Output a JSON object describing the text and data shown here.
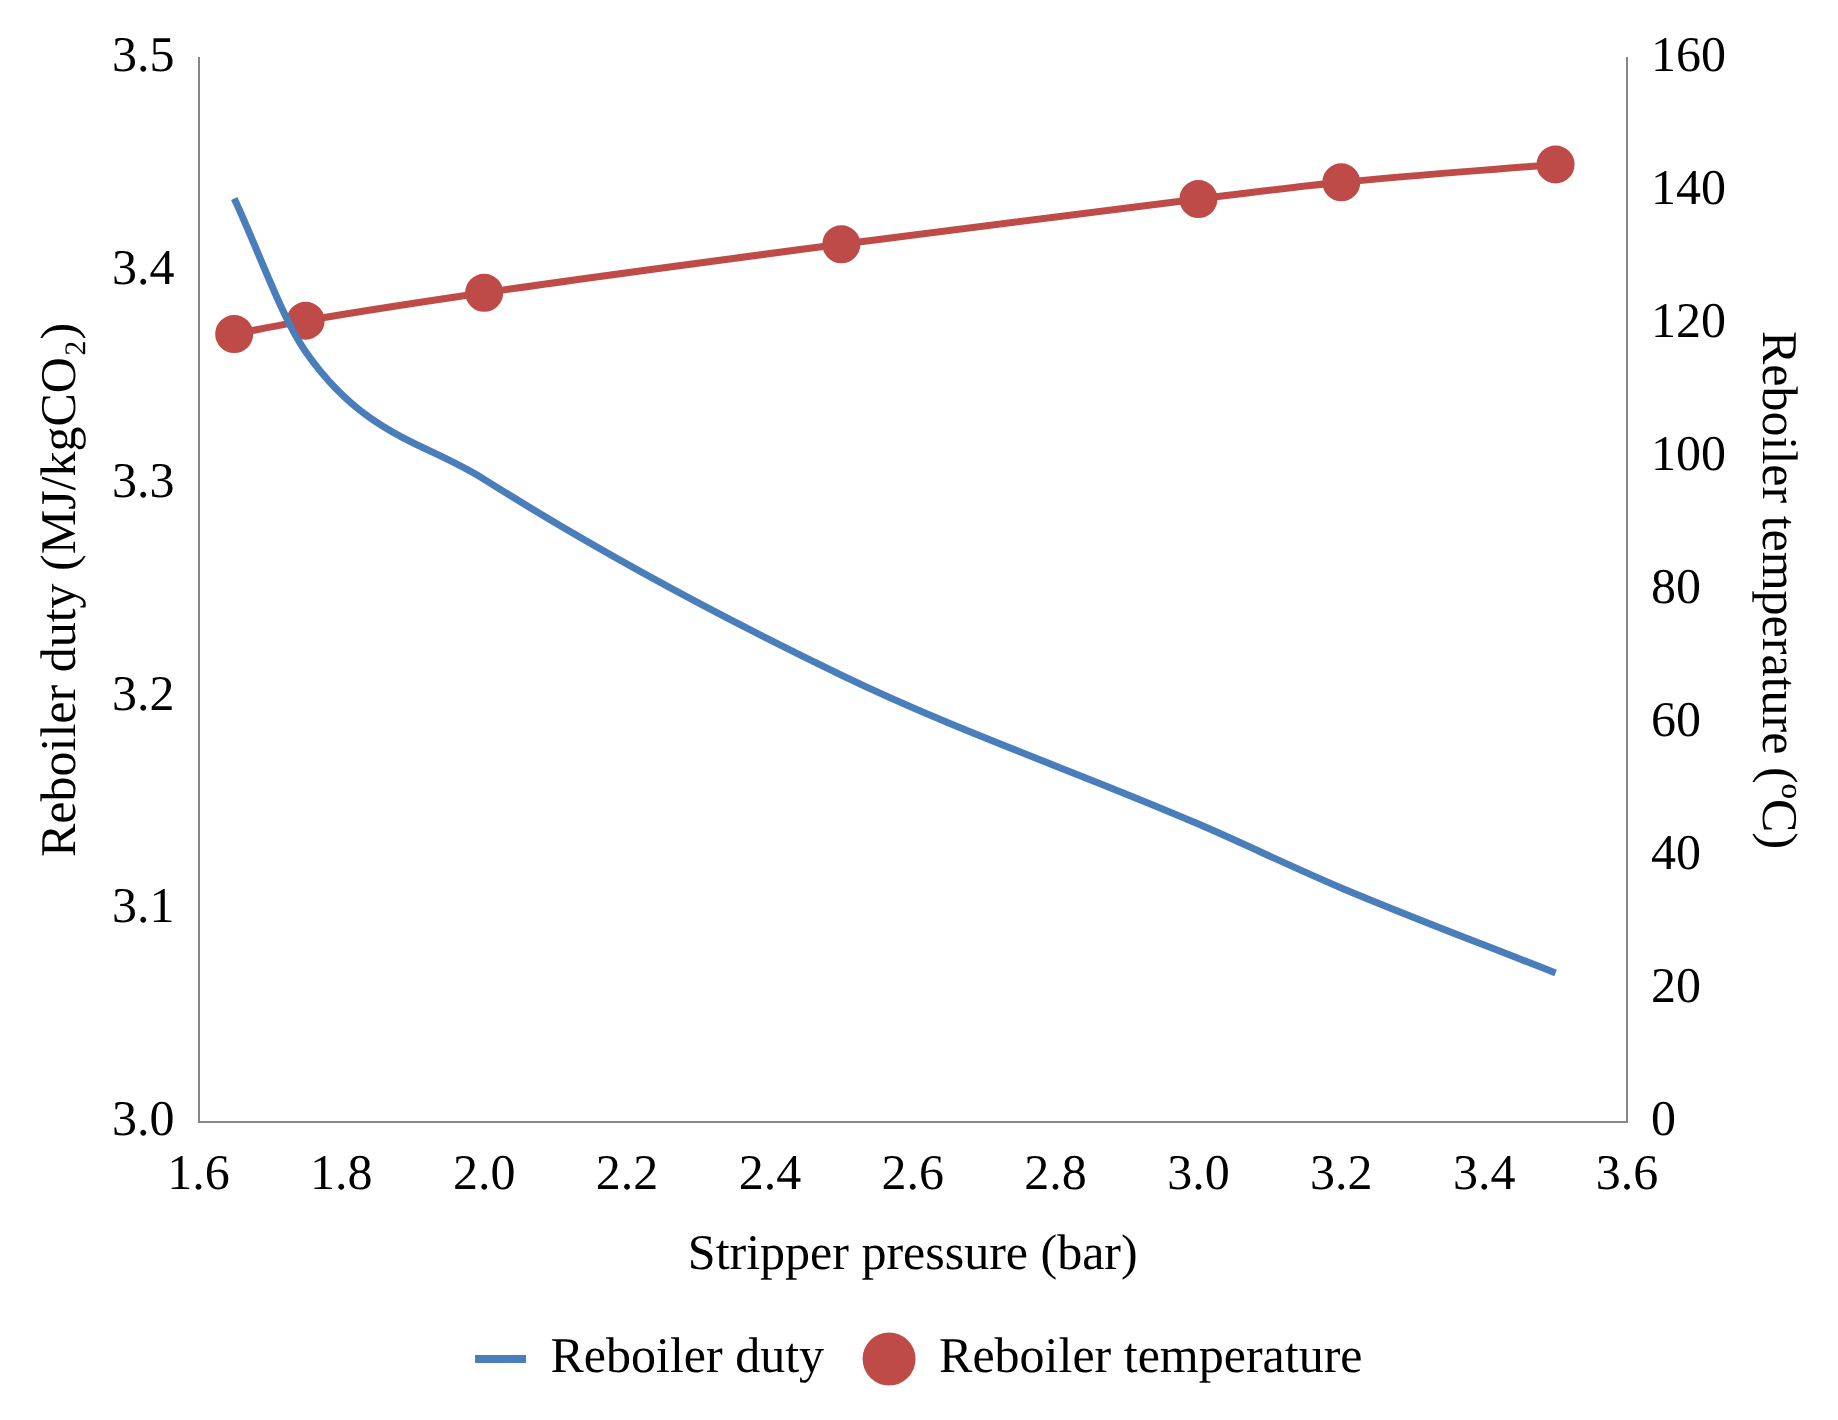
{
  "chart_data": {
    "type": "line",
    "xlabel": "Stripper pressure (bar)",
    "ylabel": "Reboiler duty (MJ/kgCO₂)",
    "y2label": "Reboiler temperature (ºC)",
    "x": [
      1.65,
      1.75,
      2.0,
      2.5,
      3.0,
      3.2,
      3.5
    ],
    "series": [
      {
        "name": "Reboiler duty",
        "color": "#4a7ebb",
        "values": [
          3.434,
          3.362,
          3.302,
          3.21,
          3.14,
          3.11,
          3.07
        ],
        "marker": "none"
      },
      {
        "name": "Reboiler temperature",
        "color": "#be4b48",
        "values": [
          118.5,
          120.5,
          124.7,
          132,
          138.8,
          141.3,
          144
        ],
        "marker": "circle",
        "axis": "y2"
      }
    ],
    "xlim": [
      1.6,
      3.6
    ],
    "xticks": [
      1.6,
      1.8,
      {
        "value": 2,
        "label": "2.0"
      },
      2.2,
      2.4,
      2.6,
      2.8,
      {
        "value": 3,
        "label": "3.0"
      },
      3.2,
      3.4,
      3.6
    ],
    "ylim": [
      3,
      3.5
    ],
    "yticks": [
      {
        "value": 3,
        "label": "3.0"
      },
      3.1,
      3.2,
      3.3,
      3.4,
      3.5
    ],
    "y2lim": [
      0,
      160
    ],
    "y2ticks": [
      0,
      20,
      40,
      60,
      80,
      100,
      120,
      140,
      160
    ],
    "grid": false,
    "legend": "bottom"
  }
}
